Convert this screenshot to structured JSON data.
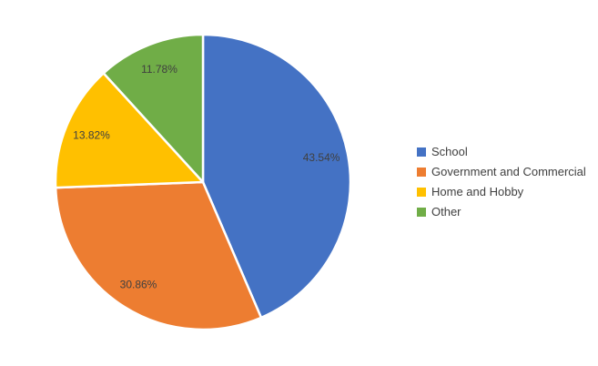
{
  "chart_data": {
    "type": "pie",
    "title": "",
    "categories": [
      "School",
      "Government and Commercial",
      "Home and Hobby",
      "Other"
    ],
    "values": [
      43.54,
      30.86,
      13.82,
      11.78
    ],
    "percent_labels": [
      "43.54%",
      "30.86%",
      "13.82%",
      "11.78%"
    ],
    "colors": [
      "#4472C4",
      "#ED7D31",
      "#FFC000",
      "#70AD47"
    ],
    "slice_border_color": "#FFFFFF",
    "label_color": "#404040",
    "start_angle_deg": 0,
    "direction": "clockwise",
    "background": "#FFFFFF",
    "legend": {
      "position": "right",
      "entries": [
        "School",
        "Government and Commercial",
        "Home and Hobby",
        "Other"
      ],
      "text_color": "#404040"
    }
  }
}
